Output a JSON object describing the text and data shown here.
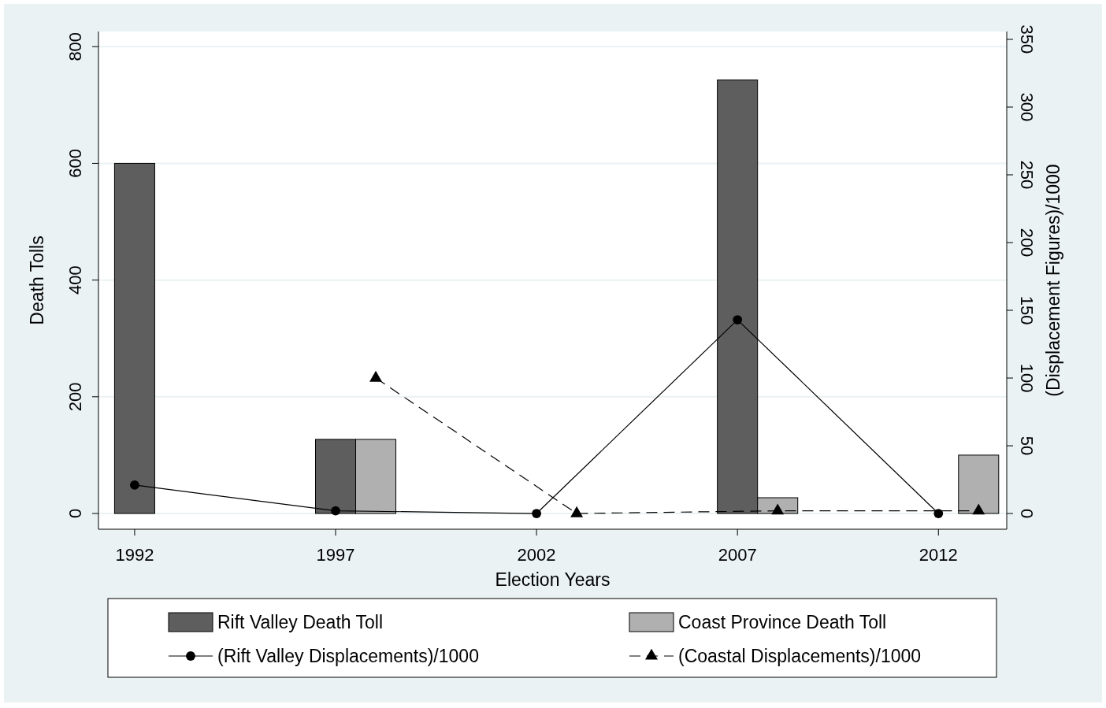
{
  "chart_data": {
    "type": "bar",
    "xlabel": "Election Years",
    "ylabel": "Death Tolls",
    "y2label": "(Displacement Figures)/1000",
    "xlim": [
      1991.1,
      2013.7
    ],
    "xticks": [
      1992,
      1997,
      2002,
      2007,
      2012
    ],
    "ylim": [
      -27,
      826
    ],
    "yticks": [
      0,
      200,
      400,
      600,
      800
    ],
    "y2lim": [
      -11.6,
      355.8
    ],
    "y2ticks": [
      0,
      50,
      100,
      150,
      200,
      250,
      300,
      350
    ],
    "grid": "y",
    "legend": "bottom",
    "series": [
      {
        "name": "Rift Valley Death Toll",
        "color": "#5e5e5e",
        "x": [
          1992,
          1997,
          2002,
          2007,
          2012
        ],
        "values": [
          600,
          127,
          0,
          743,
          0
        ]
      },
      {
        "name": "Coast Province Death Toll",
        "color": "#b0b0b0",
        "x": [
          1998,
          2003,
          2008,
          2013
        ],
        "values": [
          127,
          0,
          27,
          100
        ]
      },
      {
        "name": "(Rift Valley Displacements)/1000",
        "type": "line",
        "axis": "y2",
        "color": "#000000",
        "marker": "circle",
        "line_style": "solid",
        "x": [
          1992,
          1997,
          2002,
          2007,
          2012
        ],
        "values": [
          21,
          2,
          0,
          143,
          0
        ]
      },
      {
        "name": "(Coastal Displacements)/1000",
        "type": "line",
        "axis": "y2",
        "color": "#000000",
        "marker": "triangle",
        "line_style": "dashed",
        "x": [
          1998,
          2003,
          2008,
          2013
        ],
        "values": [
          100,
          0,
          2,
          2
        ]
      }
    ]
  }
}
